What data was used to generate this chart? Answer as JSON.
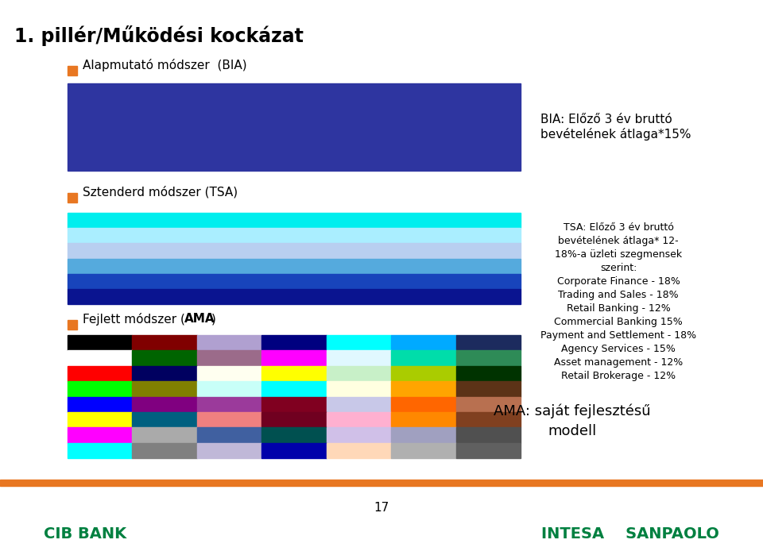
{
  "title": "1. pillér/Működési kockázat",
  "title_fontsize": 17,
  "background_color": "#ffffff",
  "orange_bullet_color": "#E87722",
  "label1": "Alapmutató módszer  (BIA)",
  "label2": "Sztenderd módszer (TSA)",
  "bia_color": "#2E35A0",
  "tsa_colors": [
    "#00EEEE",
    "#AAEEFF",
    "#B8CFF0",
    "#55AADD",
    "#1844BB",
    "#0A1490"
  ],
  "ama_grid_colors": [
    [
      "#000000",
      "#800000",
      "#B0A0D0",
      "#000080",
      "#00FFFF",
      "#00AAFF",
      "#1C2B5E"
    ],
    [
      "#FFFFFF",
      "#006400",
      "#9B6B8A",
      "#FF00FF",
      "#E0F8FF",
      "#00DDAA",
      "#2E8B57"
    ],
    [
      "#FF0000",
      "#000060",
      "#FFFFF0",
      "#FFFF00",
      "#C8F0C8",
      "#AACC00",
      "#003300"
    ],
    [
      "#00FF00",
      "#808000",
      "#C8FFF8",
      "#00FFFF",
      "#FFFFE0",
      "#FFA500",
      "#5C3317"
    ],
    [
      "#0000FF",
      "#800080",
      "#9B3A9B",
      "#800020",
      "#C8C8E8",
      "#FF6600",
      "#B87050"
    ],
    [
      "#FFFF00",
      "#006080",
      "#F08080",
      "#700020",
      "#FFB0D0",
      "#FF8800",
      "#804020"
    ],
    [
      "#FF00FF",
      "#AAAAAA",
      "#4060A0",
      "#005050",
      "#D0C0E8",
      "#A0A0C0",
      "#505050"
    ],
    [
      "#00FFFF",
      "#808080",
      "#C0B8D8",
      "#0000AA",
      "#FFD8B8",
      "#B0B0B0",
      "#606060"
    ]
  ],
  "bia_text": "BIA: Előző 3 év bruttó\nbevételének átlaga*15%",
  "tsa_text": "TSA: Előző 3 év bruttó\nbevételének átlaga* 12-\n18%-a üzleti szegmensek\nszerint:\nCorporate Finance - 18%\nTrading and Sales - 18%\nRetail Banking - 12%\nCommercial Banking 15%\nPayment and Settlement - 18%\nAgency Services - 15%\nAsset management - 12%\nRetail Brokerage - 12%",
  "ama_text": "AMA: saját fejlesztésű\nmodell",
  "footer_line_color": "#E87722",
  "page_number": "17"
}
